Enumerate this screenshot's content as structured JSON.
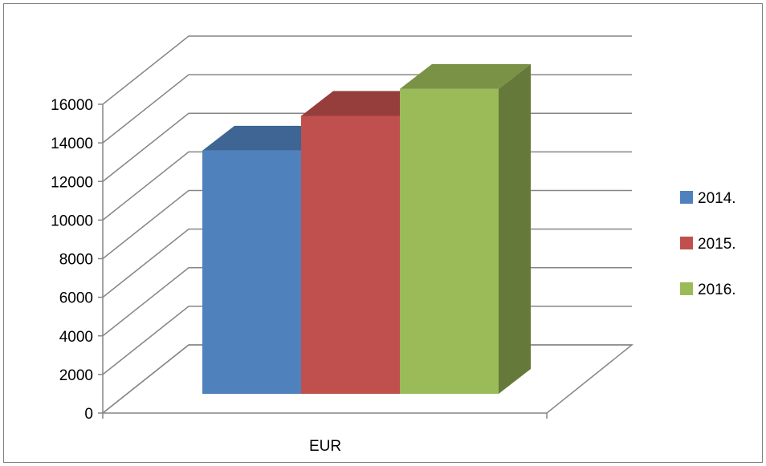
{
  "chart_data": {
    "type": "bar",
    "categories": [
      "EUR"
    ],
    "series": [
      {
        "name": "2014.",
        "values": [
          12600
        ],
        "color": "#4f81bd"
      },
      {
        "name": "2015.",
        "values": [
          14400
        ],
        "color": "#c0504d"
      },
      {
        "name": "2016.",
        "values": [
          15800
        ],
        "color": "#9bbb59"
      }
    ],
    "ylim": [
      0,
      16000
    ],
    "yticks": [
      "0",
      "2000",
      "4000",
      "6000",
      "8000",
      "10000",
      "12000",
      "14000",
      "16000"
    ],
    "grid": true,
    "three_d": true,
    "legend_position": "right"
  }
}
